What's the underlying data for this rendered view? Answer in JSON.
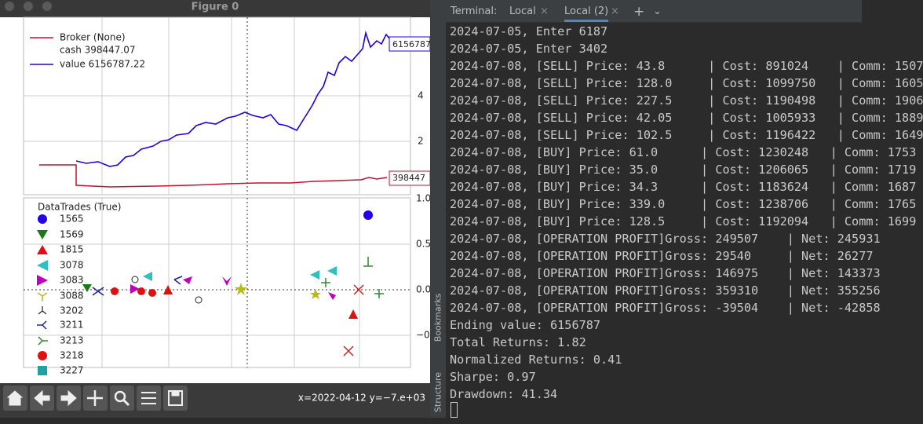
{
  "window": {
    "title": "Figure 0",
    "status": "x=2022-04-12 y=−7.e+03"
  },
  "plot": {
    "legend_top": [
      "Broker (None)",
      "cash 398447.07",
      "value 6156787.22"
    ],
    "value_tag": "6156787",
    "cash_tag": "398447",
    "top_ticks": [
      "4",
      "2"
    ],
    "bottom_ticks": [
      "1.0",
      "0.5",
      "0.0",
      "−0"
    ],
    "trades_title": "DataTrades (True)",
    "trades": [
      "1565",
      "1569",
      "1815",
      "3078",
      "3083",
      "3088",
      "3202",
      "3211",
      "3213",
      "3218",
      "3227"
    ]
  },
  "terminal": {
    "tabs": [
      "Terminal:",
      "Local",
      "Local (2)"
    ],
    "side_tabs": [
      "Bookmarks",
      "Structure"
    ],
    "lines": [
      "2024-07-05, Enter 6187",
      "2024-07-05, Enter 3402",
      "2024-07-08, [SELL] Price: 43.8      | Cost: 891024    | Comm: 1507",
      "2024-07-08, [SELL] Price: 128.0     | Cost: 1099750   | Comm: 1605",
      "2024-07-08, [SELL] Price: 227.5     | Cost: 1190498   | Comm: 1906",
      "2024-07-08, [SELL] Price: 42.05     | Cost: 1005933   | Comm: 1889",
      "2024-07-08, [SELL] Price: 102.5     | Cost: 1196422   | Comm: 1649",
      "2024-07-08, [BUY] Price: 61.0      | Cost: 1230248   | Comm: 1753",
      "2024-07-08, [BUY] Price: 35.0      | Cost: 1206065   | Comm: 1719",
      "2024-07-08, [BUY] Price: 34.3      | Cost: 1183624   | Comm: 1687",
      "2024-07-08, [BUY] Price: 339.0     | Cost: 1238706   | Comm: 1765",
      "2024-07-08, [BUY] Price: 128.5     | Cost: 1192094   | Comm: 1699",
      "2024-07-08, [OPERATION PROFIT]Gross: 249507    | Net: 245931",
      "2024-07-08, [OPERATION PROFIT]Gross: 29540     | Net: 26277",
      "2024-07-08, [OPERATION PROFIT]Gross: 146975    | Net: 143373",
      "2024-07-08, [OPERATION PROFIT]Gross: 359310    | Net: 355256",
      "2024-07-08, [OPERATION PROFIT]Gross: -39504    | Net: -42858",
      "Ending value: 6156787",
      "Total Returns: 1.82",
      "Normalized Returns: 0.41",
      "Sharpe: 0.97",
      "Drawdown: 41.34"
    ]
  }
}
